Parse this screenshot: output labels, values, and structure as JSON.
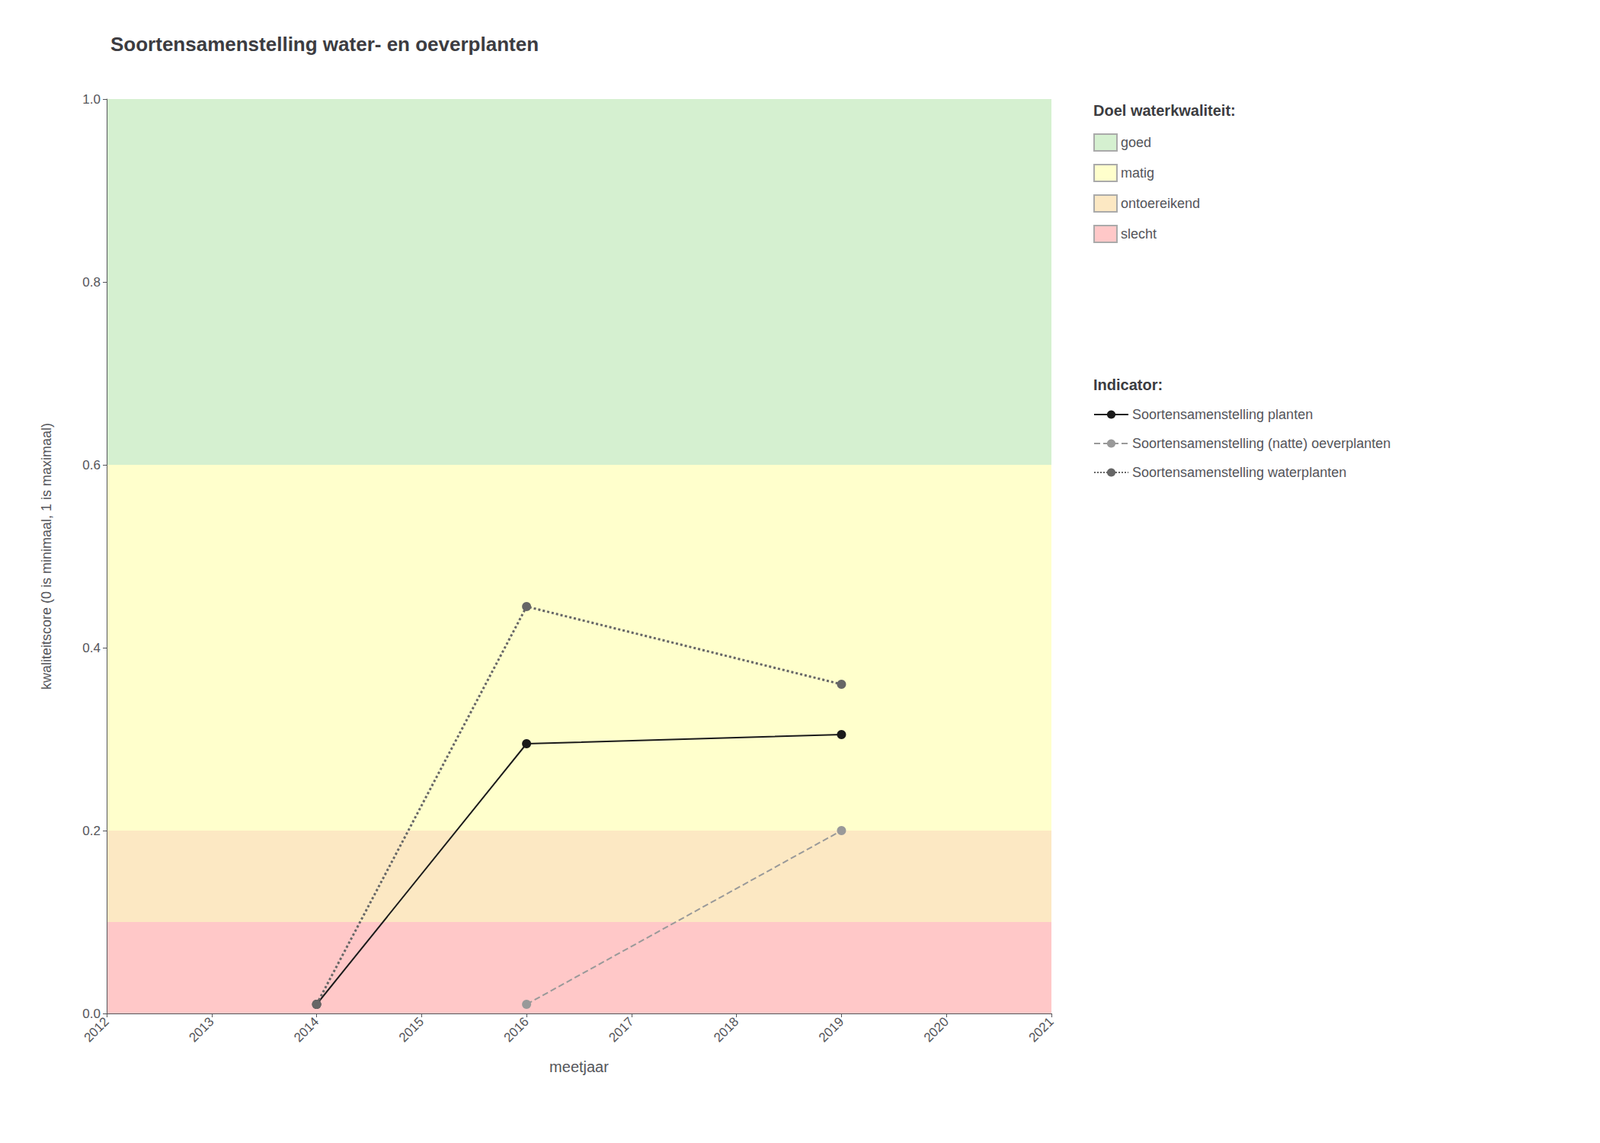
{
  "chart_data": {
    "type": "line",
    "title": "Soortensamenstelling water- en oeverplanten",
    "xlabel": "meetjaar",
    "ylabel": "kwaliteitscore (0 is minimaal, 1 is maximaal)",
    "xlim": [
      2012,
      2021
    ],
    "ylim": [
      0.0,
      1.0
    ],
    "xticks": [
      2012,
      2013,
      2014,
      2015,
      2016,
      2017,
      2018,
      2019,
      2020,
      2021
    ],
    "yticks": [
      {
        "value": 0.0,
        "label": "0.0"
      },
      0.2,
      0.4,
      0.6,
      0.8,
      {
        "value": 1.0,
        "label": "1.0"
      }
    ],
    "grid": true,
    "legend": "right",
    "legend_title_bands": "Doel waterkwaliteit:",
    "legend_title_series": "Indicator:",
    "bands": [
      {
        "label": "goed",
        "color": "#d5f0d0",
        "from": 0.6,
        "to": 1.0
      },
      {
        "label": "matig",
        "color": "#ffffcc",
        "from": 0.2,
        "to": 0.6
      },
      {
        "label": "ontoereikend",
        "color": "#fce8c3",
        "from": 0.1,
        "to": 0.2
      },
      {
        "label": "slecht",
        "color": "#ffc8c8",
        "from": 0.0,
        "to": 0.1
      }
    ],
    "series": [
      {
        "name": "Soortensamenstelling planten",
        "color": "#1a1a1a",
        "line_style": "solid",
        "marker": "circle",
        "x": [
          2014,
          2016,
          2019
        ],
        "values": [
          0.01,
          0.295,
          0.305
        ]
      },
      {
        "name": "Soortensamenstelling (natte) oeverplanten",
        "color": "#999999",
        "line_style": "dashed",
        "marker": "circle",
        "x": [
          2016,
          2019
        ],
        "values": [
          0.01,
          0.2
        ]
      },
      {
        "name": "Soortensamenstelling waterplanten",
        "color": "#666666",
        "line_style": "dotted",
        "marker": "circle",
        "x": [
          2014,
          2016,
          2019
        ],
        "values": [
          0.01,
          0.445,
          0.36
        ]
      }
    ]
  }
}
